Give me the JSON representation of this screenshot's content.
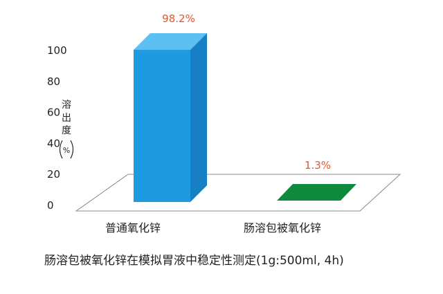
{
  "chart_data": {
    "type": "bar",
    "categories": [
      "普通氧化锌",
      "肠溶包被氧化锌"
    ],
    "values": [
      98.2,
      1.3
    ],
    "value_labels": [
      "98.2%",
      "1.3%"
    ],
    "ylabel": "溶出度(%)",
    "ylabel_chars": [
      "溶",
      "出",
      "度",
      "%"
    ],
    "yticks": [
      0,
      20,
      40,
      60,
      80,
      100
    ],
    "ylim": [
      0,
      100
    ],
    "grid": false,
    "legend": "none",
    "title": "",
    "caption": "肠溶包被氧化锌在模拟胃液中稳定性测定(1g:500ml, 4h)"
  },
  "colors": {
    "bar1_front": "#1e9be0",
    "bar1_side": "#1780c4",
    "bar1_top": "#5cc0f2",
    "bar2_fill": "#0f8a3c",
    "value_label": "#e8542a",
    "axis": "#888888",
    "text": "#222222"
  }
}
